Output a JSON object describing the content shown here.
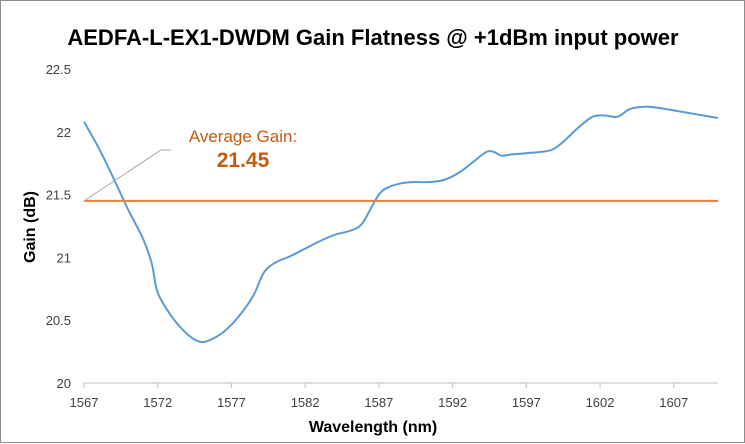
{
  "chart_data": {
    "type": "line",
    "title": "AEDFA-L-EX1-DWDM Gain Flatness @ +1dBm input power",
    "xlabel": "Wavelength (nm)",
    "ylabel": "Gain (dB)",
    "xlim": [
      1567,
      1610
    ],
    "ylim": [
      20,
      22.5
    ],
    "x_ticks": [
      1567,
      1572,
      1577,
      1582,
      1587,
      1592,
      1597,
      1602,
      1607
    ],
    "y_ticks": [
      20,
      20.5,
      21,
      21.5,
      22,
      22.5
    ],
    "y_tick_labels": [
      "20",
      "20.5",
      "21",
      "21.5",
      "22",
      "22.5"
    ],
    "grid": "none",
    "legend": "none",
    "series": [
      {
        "color": "#5b9bd5",
        "points": [
          [
            1567.0,
            22.08
          ],
          [
            1568.0,
            21.87
          ],
          [
            1569.0,
            21.63
          ],
          [
            1570.0,
            21.38
          ],
          [
            1571.0,
            21.15
          ],
          [
            1571.6,
            20.95
          ],
          [
            1572.0,
            20.72
          ],
          [
            1573.0,
            20.52
          ],
          [
            1574.0,
            20.39
          ],
          [
            1574.8,
            20.33
          ],
          [
            1575.5,
            20.34
          ],
          [
            1576.5,
            20.41
          ],
          [
            1577.5,
            20.53
          ],
          [
            1578.5,
            20.7
          ],
          [
            1579.2,
            20.88
          ],
          [
            1580.0,
            20.96
          ],
          [
            1581.0,
            21.01
          ],
          [
            1582.0,
            21.07
          ],
          [
            1583.0,
            21.13
          ],
          [
            1584.0,
            21.18
          ],
          [
            1585.0,
            21.21
          ],
          [
            1585.8,
            21.26
          ],
          [
            1586.5,
            21.4
          ],
          [
            1587.0,
            21.5
          ],
          [
            1587.5,
            21.55
          ],
          [
            1588.5,
            21.59
          ],
          [
            1589.5,
            21.6
          ],
          [
            1590.5,
            21.6
          ],
          [
            1591.5,
            21.62
          ],
          [
            1592.5,
            21.68
          ],
          [
            1593.5,
            21.77
          ],
          [
            1594.3,
            21.84
          ],
          [
            1594.8,
            21.84
          ],
          [
            1595.3,
            21.81
          ],
          [
            1596.0,
            21.82
          ],
          [
            1597.0,
            21.83
          ],
          [
            1598.0,
            21.84
          ],
          [
            1598.8,
            21.86
          ],
          [
            1599.5,
            21.92
          ],
          [
            1600.5,
            22.03
          ],
          [
            1601.5,
            22.12
          ],
          [
            1602.3,
            22.13
          ],
          [
            1603.2,
            22.12
          ],
          [
            1604.0,
            22.18
          ],
          [
            1605.0,
            22.2
          ],
          [
            1606.0,
            22.19
          ],
          [
            1607.0,
            22.17
          ],
          [
            1608.5,
            22.14
          ],
          [
            1610.0,
            22.11
          ]
        ]
      }
    ],
    "reference_line": {
      "y": 21.45,
      "color": "#ed7d31",
      "label": "Average Gain:",
      "value_text": "21.45"
    },
    "annotation_color": "#c55a11"
  }
}
